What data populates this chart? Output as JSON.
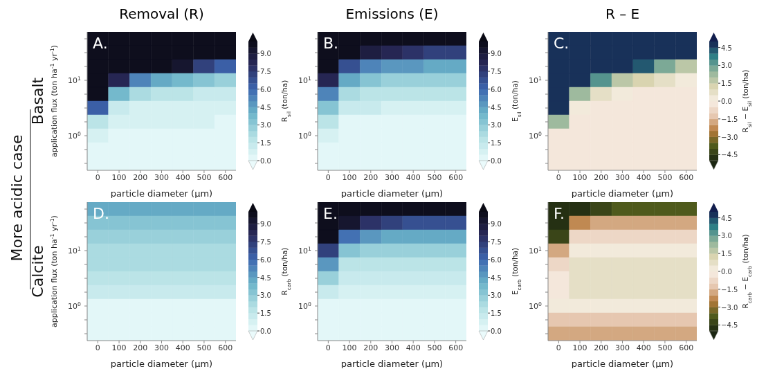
{
  "chart_data": [
    {
      "type": "heatmap",
      "title": "Removal (R)",
      "annotations": [
        "A.",
        "Basalt",
        "More acidic case"
      ],
      "xlabel": "particle diameter (μm)",
      "ylabel": "application flux (ton ha$^{-1}$ yr$^{-1}$)",
      "clabel": "R$_{sil}$ (ton/ha)",
      "clim": [
        0,
        10
      ],
      "cticks": [
        {
          "value": 0,
          "label": "0.0"
        },
        {
          "value": 1.5,
          "label": "1.5"
        },
        {
          "value": 3,
          "label": "3.0"
        },
        {
          "value": 4.5,
          "label": "4.5"
        },
        {
          "value": 6,
          "label": "6.0"
        },
        {
          "value": 7.5,
          "label": "7.5"
        },
        {
          "value": 9,
          "label": "9.0"
        }
      ],
      "colors": [
        "#eafafb",
        "#b4e1e4",
        "#6bb3c8",
        "#3d67b0",
        "#2a2a5c",
        "#0a0a14"
      ],
      "categories": [
        "0",
        "100",
        "200",
        "300",
        "400",
        "500",
        "600"
      ],
      "y_categories": [
        null,
        null,
        null,
        "10$^{1}$",
        null,
        null,
        null,
        "10$^{0}$",
        null,
        null
      ],
      "cells": [
        [
          10,
          10,
          10,
          10,
          10,
          10,
          10
        ],
        [
          10,
          10,
          10,
          10,
          10,
          10,
          10
        ],
        [
          10,
          10,
          10,
          10,
          9,
          7,
          6
        ],
        [
          10,
          8,
          5,
          4,
          3.5,
          3,
          2.5
        ],
        [
          10,
          3.5,
          2,
          1.5,
          1.5,
          1,
          1
        ],
        [
          6,
          1,
          0.5,
          0.5,
          0.5,
          0.5,
          0.5
        ],
        [
          1.5,
          0.5,
          0.5,
          0.5,
          0.5,
          0.5,
          0.3
        ],
        [
          0.5,
          0.3,
          0.3,
          0.3,
          0.3,
          0.3,
          0.3
        ],
        [
          0.3,
          0.2,
          0.2,
          0.2,
          0.2,
          0.2,
          0.2
        ],
        [
          0.2,
          0.1,
          0.1,
          0.1,
          0.1,
          0.1,
          0.1
        ]
      ]
    },
    {
      "type": "heatmap",
      "title": "Emissions (E)",
      "annotations": [
        "B."
      ],
      "xlabel": "particle diameter (μm)",
      "clabel": "E$_{sil}$ (ton/ha)",
      "clim": [
        0,
        10
      ],
      "cticks": [
        {
          "value": 0,
          "label": "0.0"
        },
        {
          "value": 1.5,
          "label": "1.5"
        },
        {
          "value": 3,
          "label": "3.0"
        },
        {
          "value": 4.5,
          "label": "4.5"
        },
        {
          "value": 6,
          "label": "6.0"
        },
        {
          "value": 7.5,
          "label": "7.5"
        },
        {
          "value": 9,
          "label": "9.0"
        }
      ],
      "colors": [
        "#eafafb",
        "#b4e1e4",
        "#6bb3c8",
        "#3d67b0",
        "#2a2a5c",
        "#0a0a14"
      ],
      "categories": [
        "0",
        "100",
        "200",
        "300",
        "400",
        "500",
        "600"
      ],
      "y_categories": [
        null,
        null,
        null,
        "10$^{1}$",
        null,
        null,
        null,
        "10$^{0}$",
        null,
        null
      ],
      "cells": [
        [
          10,
          10,
          10,
          10,
          10,
          10,
          10
        ],
        [
          10,
          9.5,
          8.5,
          8,
          7.5,
          7,
          7
        ],
        [
          10,
          6.5,
          5,
          4.5,
          4.5,
          4,
          4
        ],
        [
          8,
          4,
          3,
          2.5,
          2.5,
          2.5,
          2.5
        ],
        [
          5,
          2,
          1.5,
          1.5,
          1.5,
          1.5,
          1.5
        ],
        [
          3,
          1,
          1,
          0.5,
          0.5,
          0.5,
          0.5
        ],
        [
          1.5,
          0.3,
          0.3,
          0.3,
          0.3,
          0.3,
          0.3
        ],
        [
          0.5,
          0.3,
          0.3,
          0.3,
          0.3,
          0.3,
          0.3
        ],
        [
          0.2,
          0.2,
          0.2,
          0.2,
          0.2,
          0.2,
          0.2
        ],
        [
          0.1,
          0.1,
          0.1,
          0.1,
          0.1,
          0.1,
          0.1
        ]
      ]
    },
    {
      "type": "heatmap",
      "title": "R – E",
      "annotations": [
        "C."
      ],
      "xlabel": "particle diameter (μm)",
      "clabel": "R$_{sil}$ − E$_{sil}$ (ton/ha)",
      "clim": [
        -5,
        5
      ],
      "cticks": [
        {
          "value": -4.5,
          "label": "−4.5"
        },
        {
          "value": -3,
          "label": "−3.0"
        },
        {
          "value": -1.5,
          "label": "−1.5"
        },
        {
          "value": 0,
          "label": "0.0"
        },
        {
          "value": 1.5,
          "label": "1.5"
        },
        {
          "value": 3,
          "label": "3.0"
        },
        {
          "value": 4.5,
          "label": "4.5"
        }
      ],
      "colors": [
        "#1b2611",
        "#4f5a1c",
        "#b67a3a",
        "#e6c7b0",
        "#f8efe6",
        "#d9d4b0",
        "#8fb39a",
        "#2e7f86",
        "#121e4e"
      ],
      "categories": [
        "0",
        "100",
        "200",
        "300",
        "400",
        "500",
        "600"
      ],
      "y_categories": [
        null,
        null,
        null,
        "10$^{1}$",
        null,
        null,
        null,
        "10$^{0}$",
        null,
        null
      ],
      "cells": [
        [
          5,
          5,
          5,
          5,
          5,
          5,
          5
        ],
        [
          5,
          5,
          5,
          5,
          5,
          5,
          5
        ],
        [
          5,
          5,
          5,
          5,
          4,
          2.5,
          1.5
        ],
        [
          5,
          5,
          3,
          1.5,
          1,
          0.5,
          0.3
        ],
        [
          5,
          2,
          0.5,
          0.3,
          -0.2,
          -0.2,
          -0.2
        ],
        [
          5,
          0.3,
          -0.2,
          -0.2,
          -0.2,
          -0.2,
          -0.2
        ],
        [
          2,
          -0.2,
          -0.2,
          -0.2,
          -0.2,
          -0.2,
          -0.2
        ],
        [
          -0.5,
          -0.2,
          -0.2,
          -0.2,
          -0.2,
          -0.2,
          -0.2
        ],
        [
          -0.5,
          -0.2,
          -0.2,
          -0.2,
          -0.2,
          -0.2,
          -0.2
        ],
        [
          -0.2,
          -0.2,
          -0.2,
          -0.2,
          -0.2,
          -0.2,
          -0.2
        ]
      ]
    },
    {
      "type": "heatmap",
      "annotations": [
        "D.",
        "Calcite"
      ],
      "xlabel": "particle diameter (μm)",
      "ylabel": "application flux (ton ha$^{-1}$ yr$^{-1}$)",
      "clabel": "R$_{carb}$ (ton/ha)",
      "clim": [
        0,
        10
      ],
      "cticks": [
        {
          "value": 0,
          "label": "0.0"
        },
        {
          "value": 1.5,
          "label": "1.5"
        },
        {
          "value": 3,
          "label": "3.0"
        },
        {
          "value": 4.5,
          "label": "4.5"
        },
        {
          "value": 6,
          "label": "6.0"
        },
        {
          "value": 7.5,
          "label": "7.5"
        },
        {
          "value": 9,
          "label": "9.0"
        }
      ],
      "colors": [
        "#eafafb",
        "#b4e1e4",
        "#6bb3c8",
        "#3d67b0",
        "#2a2a5c",
        "#0a0a14"
      ],
      "categories": [
        "0",
        "100",
        "200",
        "300",
        "400",
        "500",
        "600"
      ],
      "y_categories": [
        null,
        null,
        null,
        "10$^{1}$",
        null,
        null,
        null,
        "10$^{0}$",
        null,
        null
      ],
      "cells": [
        [
          4,
          4,
          4,
          4,
          4,
          4,
          4
        ],
        [
          3,
          3,
          3,
          3,
          3,
          3,
          3
        ],
        [
          2.5,
          2.5,
          2.5,
          2.5,
          2.5,
          2.5,
          2.5
        ],
        [
          2,
          2,
          2,
          2,
          2,
          2,
          2
        ],
        [
          2,
          2,
          2,
          2,
          2,
          2,
          2
        ],
        [
          1.5,
          1.5,
          1.5,
          1.5,
          1.5,
          1.5,
          1.5
        ],
        [
          1,
          1,
          1,
          1,
          1,
          1,
          1
        ],
        [
          0.2,
          0.2,
          0.2,
          0.2,
          0.2,
          0.2,
          0.2
        ],
        [
          0.2,
          0.2,
          0.2,
          0.2,
          0.2,
          0.2,
          0.2
        ],
        [
          0.2,
          0.2,
          0.2,
          0.2,
          0.2,
          0.2,
          0.2
        ]
      ]
    },
    {
      "type": "heatmap",
      "annotations": [
        "E."
      ],
      "xlabel": "particle diameter (μm)",
      "clabel": "E$_{carb}$ (ton/ha)",
      "clim": [
        0,
        10
      ],
      "cticks": [
        {
          "value": 0,
          "label": "0.0"
        },
        {
          "value": 1.5,
          "label": "1.5"
        },
        {
          "value": 3,
          "label": "3.0"
        },
        {
          "value": 4.5,
          "label": "4.5"
        },
        {
          "value": 6,
          "label": "6.0"
        },
        {
          "value": 7.5,
          "label": "7.5"
        },
        {
          "value": 9,
          "label": "9.0"
        }
      ],
      "colors": [
        "#eafafb",
        "#b4e1e4",
        "#6bb3c8",
        "#3d67b0",
        "#2a2a5c",
        "#0a0a14"
      ],
      "categories": [
        "0",
        "100",
        "200",
        "300",
        "400",
        "500",
        "600"
      ],
      "y_categories": [
        null,
        null,
        null,
        "10$^{1}$",
        null,
        null,
        null,
        "10$^{0}$",
        null,
        null
      ],
      "cells": [
        [
          10,
          10,
          10,
          10,
          10,
          10,
          10
        ],
        [
          10,
          9,
          7.5,
          7,
          6.5,
          6.5,
          6.5
        ],
        [
          10,
          5.5,
          4.5,
          4,
          4,
          4,
          4
        ],
        [
          7,
          3,
          2.5,
          2.5,
          2.5,
          2.5,
          2.5
        ],
        [
          4.5,
          1.5,
          1.5,
          1.5,
          1.5,
          1.5,
          1.5
        ],
        [
          2.5,
          1,
          1,
          1,
          1,
          1,
          1
        ],
        [
          1.2,
          0.5,
          0.5,
          0.5,
          0.5,
          0.5,
          0.5
        ],
        [
          0.3,
          0.3,
          0.3,
          0.3,
          0.3,
          0.3,
          0.3
        ],
        [
          0.2,
          0.2,
          0.2,
          0.2,
          0.2,
          0.2,
          0.2
        ],
        [
          0.1,
          0.1,
          0.1,
          0.1,
          0.1,
          0.1,
          0.1
        ]
      ]
    },
    {
      "type": "heatmap",
      "annotations": [
        "F."
      ],
      "xlabel": "particle diameter (μm)",
      "clabel": "R$_{carb}$ − E$_{carb}$ (ton/ha)",
      "clim": [
        -5,
        5
      ],
      "cticks": [
        {
          "value": -4.5,
          "label": "−4.5"
        },
        {
          "value": -3,
          "label": "−3.0"
        },
        {
          "value": -1.5,
          "label": "−1.5"
        },
        {
          "value": 0,
          "label": "0.0"
        },
        {
          "value": 1.5,
          "label": "1.5"
        },
        {
          "value": 3,
          "label": "3.0"
        },
        {
          "value": 4.5,
          "label": "4.5"
        }
      ],
      "colors": [
        "#1b2611",
        "#4f5a1c",
        "#b67a3a",
        "#e6c7b0",
        "#f8efe6",
        "#d9d4b0",
        "#8fb39a",
        "#2e7f86",
        "#121e4e"
      ],
      "categories": [
        "0",
        "100",
        "200",
        "300",
        "400",
        "500",
        "600"
      ],
      "y_categories": [
        null,
        null,
        null,
        "10$^{1}$",
        null,
        null,
        null,
        "10$^{0}$",
        null,
        null
      ],
      "cells": [
        [
          -5,
          -5,
          -4.5,
          -4,
          -4,
          -4,
          -4
        ],
        [
          -5,
          -2.5,
          -2,
          -2,
          -2,
          -2,
          -2
        ],
        [
          -4.5,
          -1,
          -0.8,
          -0.8,
          -0.8,
          -0.8,
          -0.8
        ],
        [
          -2,
          0.2,
          0.2,
          0.2,
          0.2,
          0.2,
          0.2
        ],
        [
          -1,
          0.7,
          0.7,
          0.7,
          0.7,
          0.7,
          0.7
        ],
        [
          -0.5,
          0.7,
          0.7,
          0.7,
          0.7,
          0.7,
          0.7
        ],
        [
          -0.3,
          0.7,
          0.7,
          0.7,
          0.7,
          0.7,
          0.7
        ],
        [
          0.2,
          0.2,
          0.2,
          0.2,
          0.2,
          0.2,
          0.2
        ],
        [
          -1.2,
          -1.2,
          -1.2,
          -1.2,
          -1.2,
          -1.2,
          -1.2
        ],
        [
          -1.7,
          -1.7,
          -1.7,
          -1.7,
          -1.7,
          -1.7,
          -1.7
        ]
      ]
    }
  ]
}
